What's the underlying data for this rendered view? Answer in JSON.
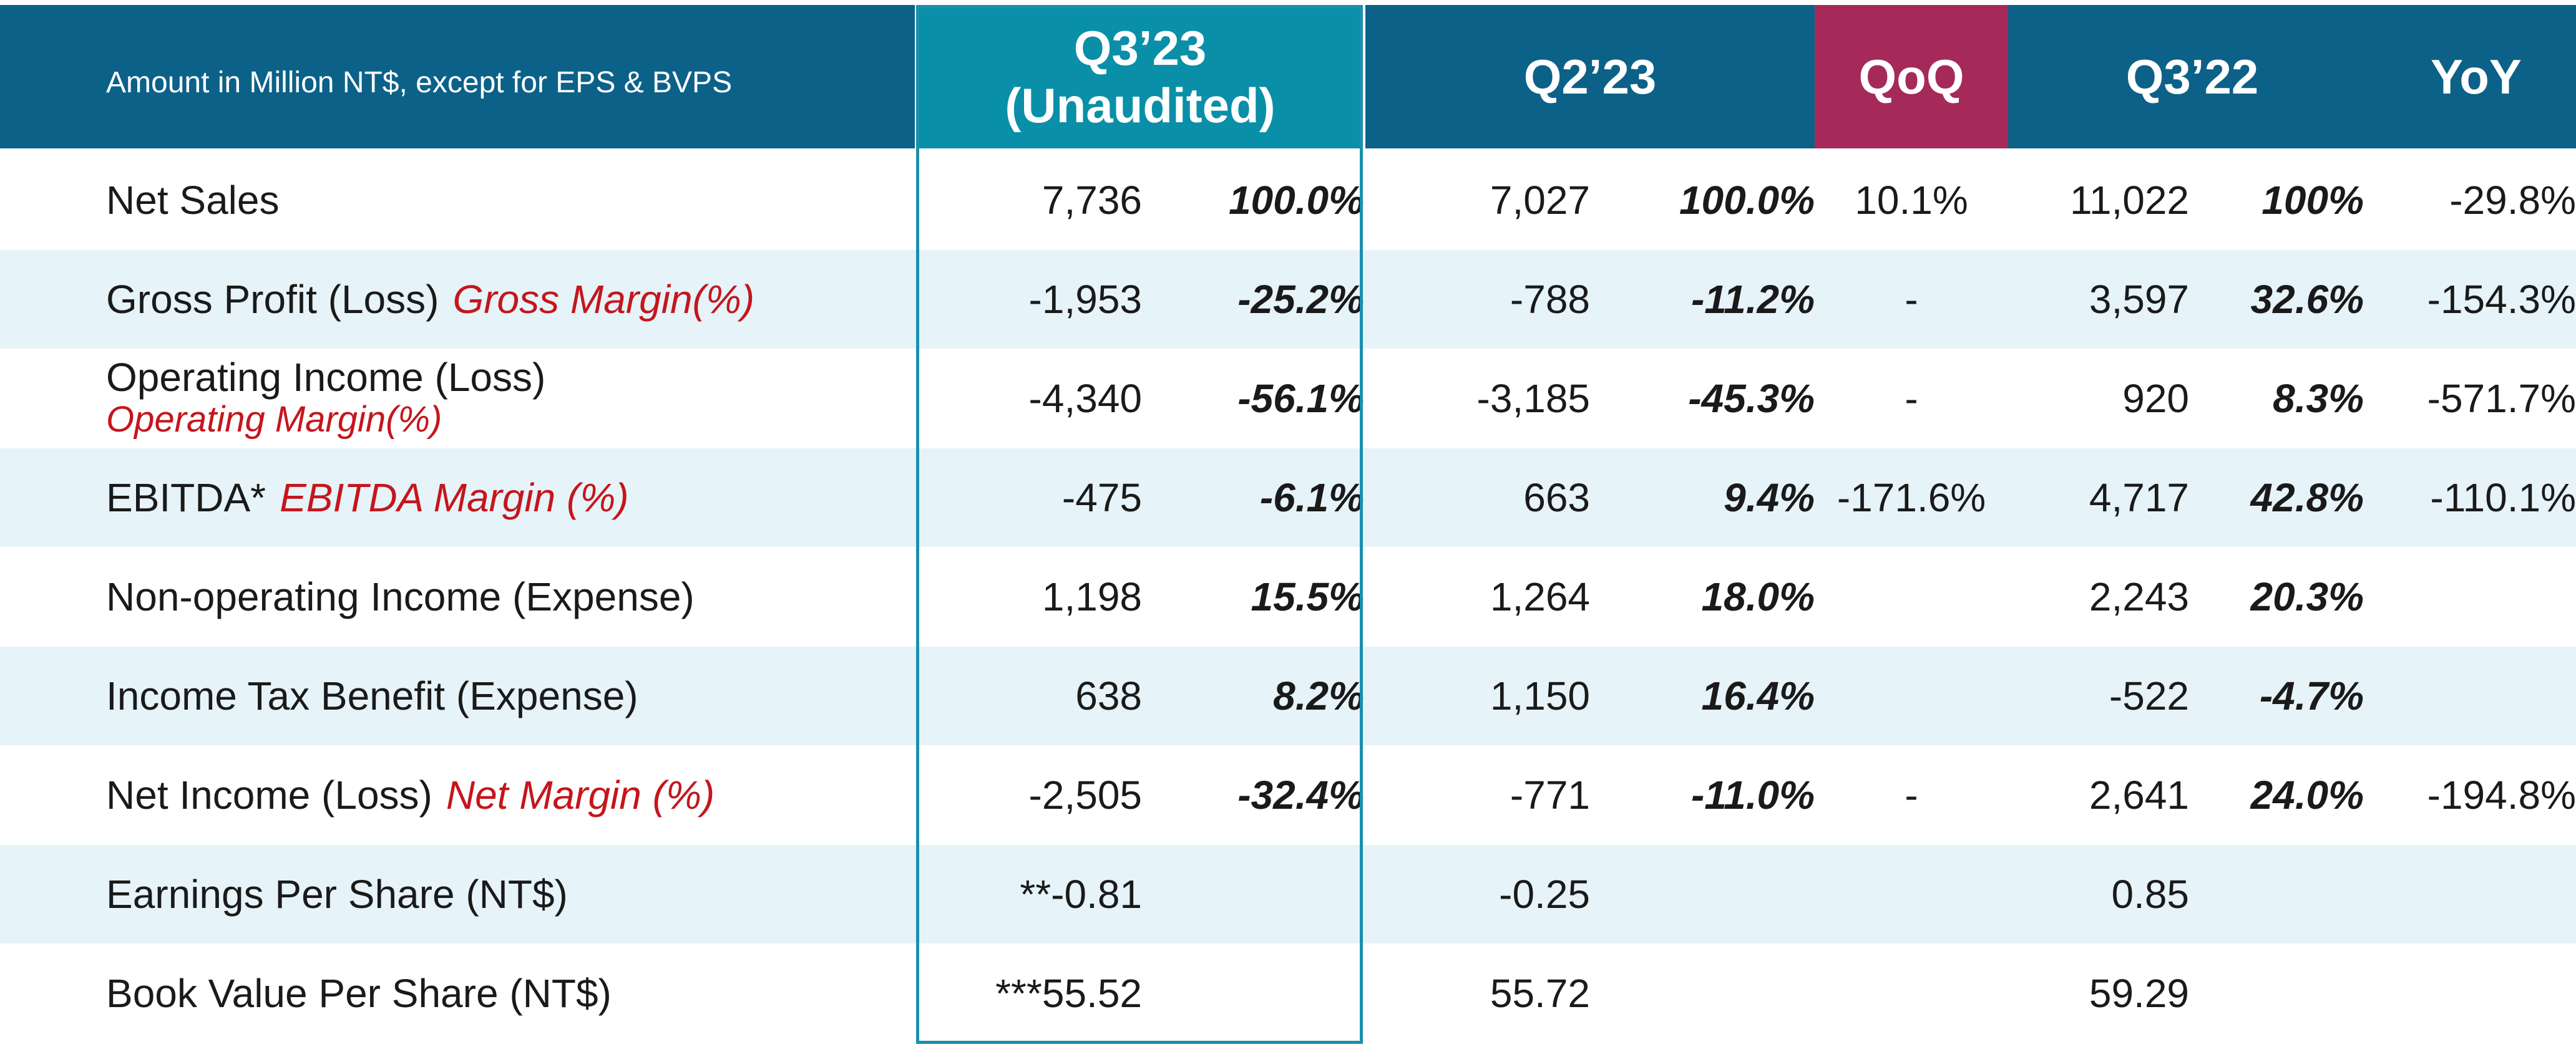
{
  "header": {
    "note": "Amount in Million NT$, except for EPS & BVPS",
    "q323_line1": "Q3’23",
    "q323_line2": "(Unaudited)",
    "q223": "Q2’23",
    "qoq": "QoQ",
    "q322": "Q3’22",
    "yoy": "YoY"
  },
  "colors": {
    "header_blue": "#0c6188",
    "q323_teal": "#0a8fa8",
    "qoq_magenta": "#a52a5a",
    "row_shade": "#e6f3f8",
    "margin_red": "#c4161c"
  },
  "rows": [
    {
      "label": "Net Sales",
      "sub": "",
      "q323": "7,736",
      "q323_pct": "100.0%",
      "q223": "7,027",
      "q223_pct": "100.0%",
      "qoq": "10.1%",
      "q322": "11,022",
      "q322_pct": "100%",
      "yoy": "-29.8%"
    },
    {
      "label": "Gross Profit (Loss)",
      "sub": "Gross Margin(%)",
      "q323": "-1,953",
      "q323_pct": "-25.2%",
      "q223": "-788",
      "q223_pct": "-11.2%",
      "qoq": "-",
      "q322": "3,597",
      "q322_pct": "32.6%",
      "yoy": "-154.3%"
    },
    {
      "label": "Operating Income (Loss)",
      "sub": "Operating Margin(%)",
      "q323": "-4,340",
      "q323_pct": "-56.1%",
      "q223": "-3,185",
      "q223_pct": "-45.3%",
      "qoq": "-",
      "q322": "920",
      "q322_pct": "8.3%",
      "yoy": "-571.7%"
    },
    {
      "label": "EBITDA*",
      "sub": "EBITDA Margin (%)",
      "q323": "-475",
      "q323_pct": "-6.1%",
      "q223": "663",
      "q223_pct": "9.4%",
      "qoq": "-171.6%",
      "q322": "4,717",
      "q322_pct": "42.8%",
      "yoy": "-110.1%"
    },
    {
      "label": "Non-operating Income (Expense)",
      "sub": "",
      "q323": "1,198",
      "q323_pct": "15.5%",
      "q223": "1,264",
      "q223_pct": "18.0%",
      "qoq": "",
      "q322": "2,243",
      "q322_pct": "20.3%",
      "yoy": ""
    },
    {
      "label": "Income Tax Benefit (Expense)",
      "sub": "",
      "q323": "638",
      "q323_pct": "8.2%",
      "q223": "1,150",
      "q223_pct": "16.4%",
      "qoq": "",
      "q322": "-522",
      "q322_pct": "-4.7%",
      "yoy": ""
    },
    {
      "label": "Net Income (Loss)",
      "sub": "Net Margin (%)",
      "q323": "-2,505",
      "q323_pct": "-32.4%",
      "q223": "-771",
      "q223_pct": "-11.0%",
      "qoq": "-",
      "q322": "2,641",
      "q322_pct": "24.0%",
      "yoy": "-194.8%"
    },
    {
      "label": "Earnings Per Share (NT$)",
      "sub": "",
      "q323": "**-0.81",
      "q323_pct": "",
      "q223": "-0.25",
      "q223_pct": "",
      "qoq": "",
      "q322": "0.85",
      "q322_pct": "",
      "yoy": ""
    },
    {
      "label": "Book Value Per Share (NT$)",
      "sub": "",
      "q323": "***55.52",
      "q323_pct": "",
      "q223": "55.72",
      "q223_pct": "",
      "qoq": "",
      "q322": "59.29",
      "q322_pct": "",
      "yoy": ""
    }
  ]
}
